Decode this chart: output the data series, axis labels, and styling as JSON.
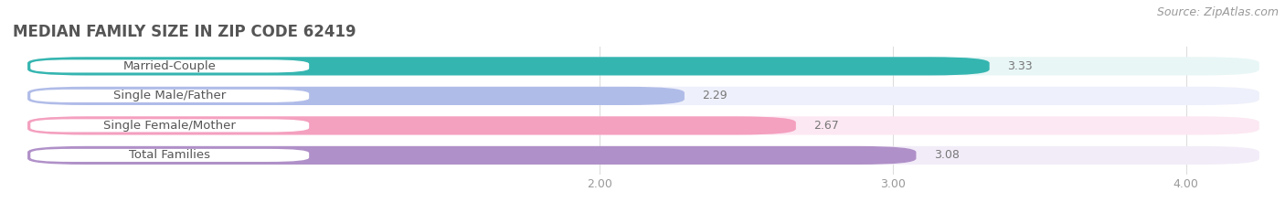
{
  "title": "MEDIAN FAMILY SIZE IN ZIP CODE 62419",
  "source": "Source: ZipAtlas.com",
  "categories": [
    "Married-Couple",
    "Single Male/Father",
    "Single Female/Mother",
    "Total Families"
  ],
  "values": [
    3.33,
    2.29,
    2.67,
    3.08
  ],
  "bar_colors": [
    "#35b5b0",
    "#b0bce8",
    "#f4a0bf",
    "#b090c8"
  ],
  "bar_bg_colors": [
    "#e8f6f6",
    "#eef0fb",
    "#fce8f2",
    "#f2ecf8"
  ],
  "label_bg_colors": [
    "#ffffff",
    "#ffffff",
    "#ffffff",
    "#ffffff"
  ],
  "xlim": [
    0.0,
    4.25
  ],
  "xstart": 0.0,
  "bar_xstart": 0.05,
  "xticks": [
    2.0,
    3.0,
    4.0
  ],
  "xtick_labels": [
    "2.00",
    "3.00",
    "4.00"
  ],
  "background_color": "#ffffff",
  "bar_height": 0.62,
  "label_fontsize": 9.5,
  "value_fontsize": 9.0,
  "title_fontsize": 12,
  "title_color": "#555555",
  "source_fontsize": 9,
  "bar_gap": 0.38
}
